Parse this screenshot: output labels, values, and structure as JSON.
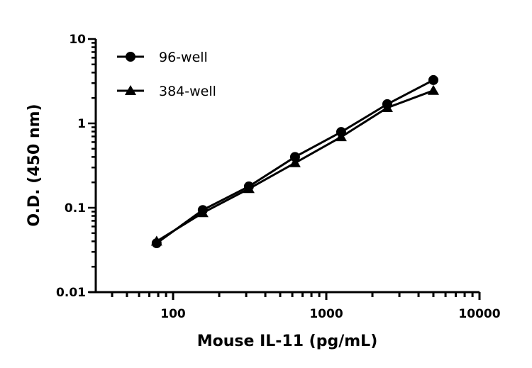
{
  "chart_data": {
    "type": "line",
    "title": "",
    "xlabel": "Mouse IL-11 (pg/mL)",
    "ylabel": "O.D. (450 nm)",
    "xscale": "log",
    "yscale": "log",
    "xlim": [
      30,
      10000
    ],
    "ylim": [
      0.01,
      10
    ],
    "x_ticks": [
      {
        "v": 100,
        "label": "100"
      },
      {
        "v": 1000,
        "label": "1000"
      },
      {
        "v": 10000,
        "label": "10000"
      }
    ],
    "y_ticks": [
      {
        "v": 0.01,
        "label": "0.01"
      },
      {
        "v": 0.1,
        "label": "0.1"
      },
      {
        "v": 1,
        "label": "1"
      },
      {
        "v": 10,
        "label": "10"
      }
    ],
    "grid": false,
    "legend_position": "top-left",
    "color": "#000000",
    "series": [
      {
        "name": "96-well",
        "marker": "circle",
        "x": [
          78.125,
          156.25,
          312.5,
          625,
          1250,
          2500,
          5000
        ],
        "y": [
          0.038,
          0.094,
          0.179,
          0.4,
          0.79,
          1.69,
          3.26
        ]
      },
      {
        "name": "384-well",
        "marker": "triangle",
        "x": [
          78.125,
          156.25,
          312.5,
          625,
          1250,
          2500,
          5000
        ],
        "y": [
          0.04,
          0.087,
          0.168,
          0.34,
          0.69,
          1.53,
          2.45
        ]
      }
    ]
  }
}
